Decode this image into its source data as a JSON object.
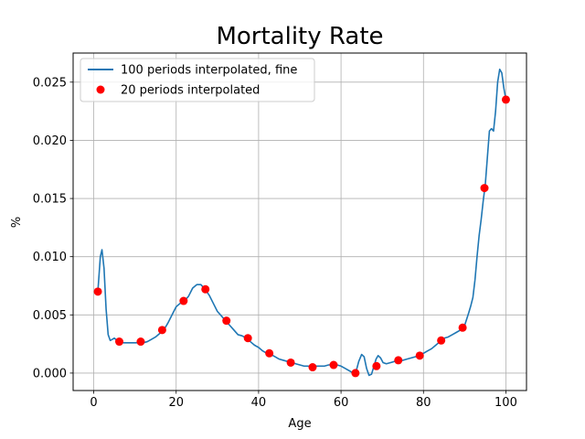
{
  "chart_data": {
    "type": "line",
    "title": "Mortality Rate",
    "xlabel": "Age",
    "ylabel": "%",
    "xlim": [
      -5,
      105
    ],
    "ylim": [
      -0.0015,
      0.0275
    ],
    "xticks": [
      0,
      20,
      40,
      60,
      80,
      100
    ],
    "xtick_labels": [
      "0",
      "20",
      "40",
      "60",
      "80",
      "100"
    ],
    "yticks": [
      0.0,
      0.005,
      0.01,
      0.015,
      0.02,
      0.025
    ],
    "ytick_labels": [
      "0.000",
      "0.005",
      "0.010",
      "0.015",
      "0.020",
      "0.025"
    ],
    "grid": true,
    "legend_position": "upper-left",
    "colors": {
      "line": "#1f77b4",
      "points": "#ff0000",
      "grid": "#b0b0b0"
    },
    "series": [
      {
        "name": "100 periods interpolated, fine",
        "kind": "line",
        "x": [
          1.0,
          1.3,
          1.6,
          2.0,
          2.5,
          3.0,
          3.5,
          4.0,
          4.5,
          5.0,
          6.0,
          7.0,
          8.0,
          9.0,
          10.0,
          11.0,
          12.0,
          13.0,
          14.0,
          15.0,
          16.0,
          17.0,
          18.0,
          19.0,
          20.0,
          21.0,
          22.0,
          23.0,
          24.0,
          25.0,
          26.0,
          27.0,
          28.0,
          29.0,
          30.0,
          31.0,
          32.0,
          33.0,
          34.0,
          35.0,
          36.0,
          37.0,
          38.0,
          39.0,
          40.0,
          41.0,
          42.0,
          43.0,
          44.0,
          45.0,
          46.0,
          47.0,
          48.0,
          49.0,
          50.0,
          51.0,
          52.0,
          53.0,
          54.0,
          55.0,
          56.0,
          57.0,
          58.0,
          59.0,
          60.0,
          61.0,
          62.0,
          63.0,
          63.7,
          64.3,
          65.0,
          65.6,
          66.2,
          66.8,
          67.4,
          68.0,
          68.5,
          69.0,
          69.6,
          70.2,
          71.0,
          72.0,
          73.0,
          74.0,
          75.0,
          76.0,
          77.0,
          78.0,
          79.0,
          80.0,
          81.0,
          82.0,
          83.0,
          84.0,
          85.0,
          86.0,
          87.0,
          88.0,
          89.0,
          90.0,
          91.0,
          91.5,
          92.0,
          92.5,
          93.0,
          93.5,
          94.0,
          94.5,
          95.0,
          95.5,
          96.0,
          96.5,
          97.0,
          97.5,
          98.0,
          98.5,
          99.0,
          99.5,
          100.0
        ],
        "y": [
          0.007,
          0.0085,
          0.01,
          0.0106,
          0.009,
          0.0055,
          0.0033,
          0.0028,
          0.0029,
          0.003,
          0.0027,
          0.0026,
          0.0026,
          0.0026,
          0.0026,
          0.0026,
          0.0026,
          0.0027,
          0.0029,
          0.0031,
          0.0034,
          0.0037,
          0.0043,
          0.005,
          0.0057,
          0.006,
          0.0062,
          0.0066,
          0.0073,
          0.0076,
          0.0076,
          0.0072,
          0.0067,
          0.006,
          0.0053,
          0.0049,
          0.0045,
          0.0041,
          0.0037,
          0.0033,
          0.0032,
          0.003,
          0.0027,
          0.0024,
          0.0022,
          0.0019,
          0.0017,
          0.0016,
          0.0014,
          0.0012,
          0.0011,
          0.001,
          0.0009,
          0.0008,
          0.0007,
          0.0006,
          0.0006,
          0.0005,
          0.0006,
          0.0006,
          0.0006,
          0.0007,
          0.0007,
          0.0007,
          0.0006,
          0.0004,
          0.0002,
          0.0,
          0.0002,
          0.001,
          0.0016,
          0.0014,
          0.0004,
          -0.0002,
          -0.0001,
          0.0006,
          0.0012,
          0.0015,
          0.0013,
          0.0009,
          0.0008,
          0.0009,
          0.001,
          0.0011,
          0.0011,
          0.0012,
          0.0013,
          0.0014,
          0.0015,
          0.0017,
          0.0019,
          0.0021,
          0.0024,
          0.0027,
          0.003,
          0.0031,
          0.0033,
          0.0035,
          0.0037,
          0.0041,
          0.0052,
          0.0058,
          0.0065,
          0.008,
          0.01,
          0.0118,
          0.0132,
          0.0148,
          0.0162,
          0.0185,
          0.0208,
          0.021,
          0.0208,
          0.0225,
          0.025,
          0.0261,
          0.0258,
          0.0245,
          0.0235
        ]
      },
      {
        "name": "20 periods interpolated",
        "kind": "scatter",
        "x": [
          1.0,
          6.2,
          11.4,
          16.6,
          21.8,
          27.1,
          32.2,
          37.4,
          42.6,
          47.8,
          53.1,
          58.2,
          63.5,
          68.6,
          73.9,
          79.1,
          84.3,
          89.5,
          94.8,
          100.0
        ],
        "y": [
          0.007,
          0.0027,
          0.0027,
          0.0037,
          0.0062,
          0.0072,
          0.0045,
          0.003,
          0.0017,
          0.0009,
          0.0005,
          0.0007,
          0.0,
          0.0006,
          0.0011,
          0.0015,
          0.0028,
          0.0039,
          0.0159,
          0.0235
        ]
      }
    ]
  }
}
